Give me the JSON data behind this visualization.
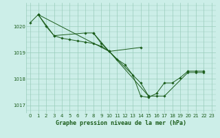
{
  "bg_color": "#cceee8",
  "grid_color": "#99ccbb",
  "line_color": "#1a5c1a",
  "marker_color": "#1a5c1a",
  "title": "Graphe pression niveau de la mer (hPa)",
  "title_color": "#1a5c1a",
  "xlim": [
    -0.5,
    23.5
  ],
  "ylim": [
    1016.7,
    1020.9
  ],
  "yticks": [
    1017,
    1018,
    1019,
    1020
  ],
  "xticks": [
    0,
    1,
    2,
    3,
    4,
    5,
    6,
    7,
    8,
    9,
    10,
    11,
    12,
    13,
    14,
    15,
    16,
    17,
    18,
    19,
    20,
    21,
    22,
    23
  ],
  "series": [
    {
      "x": [
        0,
        1,
        2,
        3,
        4,
        5,
        6,
        7,
        8,
        9,
        10,
        11,
        12,
        13,
        14,
        15,
        16,
        17,
        18,
        19,
        20,
        21,
        22
      ],
      "y": [
        1020.15,
        1020.45,
        1020.0,
        1019.65,
        1019.55,
        1019.5,
        1019.45,
        1019.4,
        1019.35,
        1019.25,
        1019.05,
        1018.75,
        1018.55,
        1018.15,
        1017.35,
        1017.3,
        1017.45,
        1017.85,
        1017.85,
        1018.05,
        1018.3,
        1018.3,
        1018.3
      ]
    },
    {
      "x": [
        1,
        3,
        7,
        8,
        10,
        14
      ],
      "y": [
        1020.45,
        1019.65,
        1019.75,
        1019.75,
        1019.05,
        1019.2
      ]
    },
    {
      "x": [
        8,
        9,
        10,
        14,
        15,
        16,
        17,
        20,
        21,
        22
      ],
      "y": [
        1019.75,
        1019.35,
        1019.05,
        1017.85,
        1017.35,
        1017.35,
        1017.35,
        1018.25,
        1018.25,
        1018.25
      ]
    },
    {
      "x": [
        1,
        10,
        15
      ],
      "y": [
        1020.45,
        1019.05,
        1017.35
      ]
    }
  ]
}
